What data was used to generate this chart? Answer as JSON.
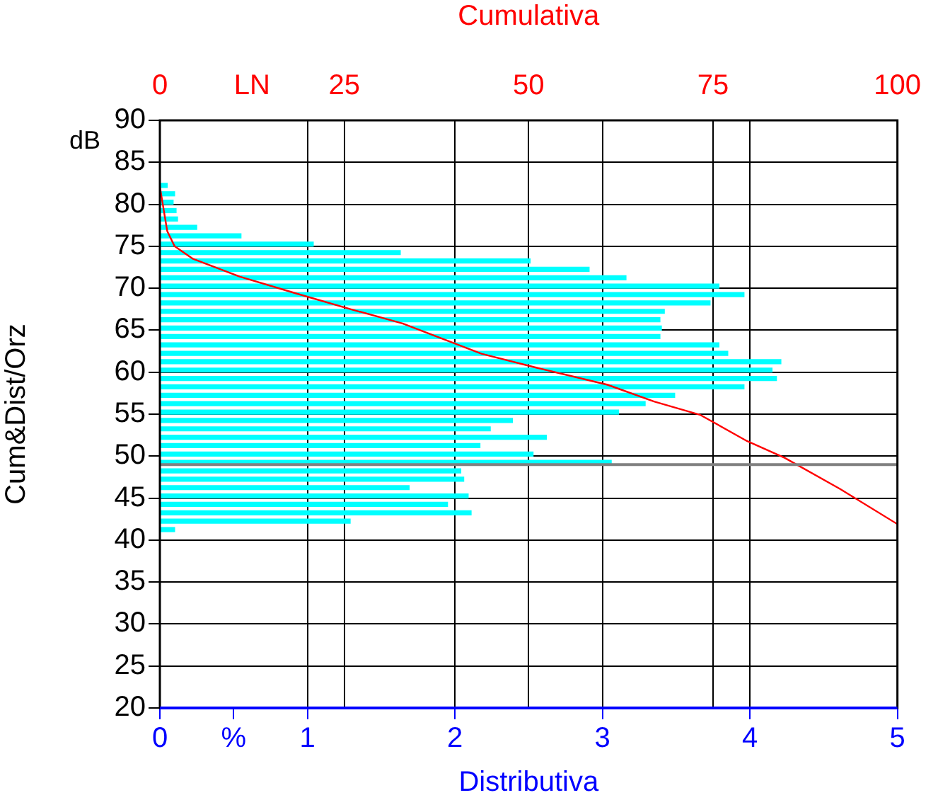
{
  "chart_data": {
    "type": "histogram",
    "orientation": "horizontal",
    "xlabel": "Distributiva",
    "x2label": "Cumulativa",
    "ylabel": "Cum&Dist/Orz",
    "xlim": [
      0,
      5
    ],
    "xticks": [
      0,
      {
        "value": 0.5,
        "label": "%"
      },
      1,
      2,
      3,
      4,
      5
    ],
    "x2lim": [
      0,
      100
    ],
    "x2ticks": [
      0,
      {
        "value": 12.5,
        "label": "LN"
      },
      25,
      50,
      75,
      100
    ],
    "ylim": [
      20,
      90
    ],
    "yticks": [
      20,
      25,
      30,
      35,
      40,
      45,
      50,
      55,
      60,
      65,
      70,
      75,
      80,
      85,
      90
    ],
    "annotations": [
      "dB"
    ],
    "grid": true,
    "legend": false,
    "ref_lines": [
      {
        "axis": "y",
        "value": 49,
        "color": "#808080"
      }
    ],
    "series": [
      {
        "color": "#00ffff",
        "bins": [
          40.5,
          41.5,
          42.5,
          43.5,
          44.5,
          45.5,
          46.5,
          47.5,
          48.5,
          49.5,
          50.5,
          51.5,
          52.5,
          53.5,
          54.5,
          55.5,
          56.5,
          57.5,
          58.5,
          59.5,
          60.5,
          61.5,
          62.5,
          63.5,
          64.5,
          65.5,
          66.5,
          67.5,
          68.5,
          69.5,
          70.5,
          71.5,
          72.5,
          73.5,
          74.5,
          75.5,
          76.5,
          77.5,
          78.5,
          79.5,
          80.5,
          81.5,
          82.5
        ],
        "values": [
          0.1,
          1.29,
          2.11,
          1.95,
          2.09,
          1.69,
          2.06,
          2.04,
          3.06,
          2.53,
          2.17,
          2.62,
          2.24,
          2.39,
          3.11,
          3.29,
          3.49,
          3.96,
          4.18,
          4.15,
          4.21,
          3.85,
          3.79,
          3.39,
          3.4,
          3.39,
          3.42,
          3.73,
          3.96,
          3.79,
          3.16,
          2.91,
          2.51,
          1.63,
          1.04,
          0.55,
          0.25,
          0.12,
          0.11,
          0.09,
          0.1,
          0.05
        ]
      },
      {
        "type": "line",
        "axis": "x2",
        "color": "#ff0000",
        "x": [
          82.1,
          76.8,
          75.0,
          73.5,
          71.4,
          69.4,
          67.5,
          65.8,
          62.2,
          60.5,
          58.5,
          56.5,
          54.9,
          51.8,
          49.8,
          46.1,
          41.9
        ],
        "values": [
          0,
          1.0,
          2.0,
          4.5,
          10.8,
          18.4,
          25.9,
          32.9,
          43.6,
          51.2,
          60.7,
          67.0,
          73.3,
          79.6,
          84.7,
          92.2,
          100
        ]
      }
    ]
  }
}
